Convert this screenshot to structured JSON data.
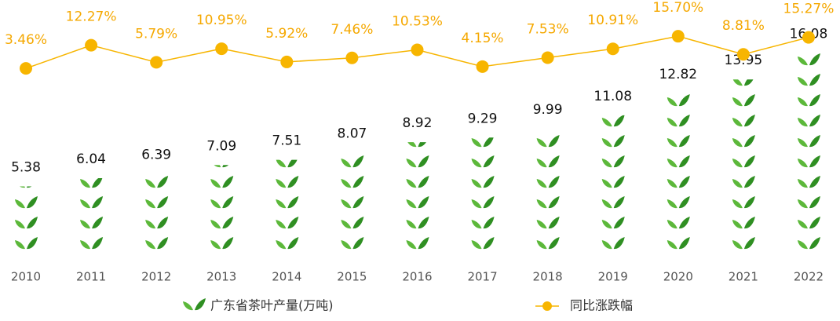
{
  "chart_data": {
    "type": "bar",
    "categories": [
      "2010",
      "2011",
      "2012",
      "2013",
      "2014",
      "2015",
      "2016",
      "2017",
      "2018",
      "2019",
      "2020",
      "2021",
      "2022"
    ],
    "series": [
      {
        "name": "广东省茶叶产量(万吨)",
        "type": "bar",
        "color": "#3c9e2a",
        "values": [
          5.38,
          6.04,
          6.39,
          7.09,
          7.51,
          8.07,
          8.92,
          9.29,
          9.99,
          11.08,
          12.82,
          13.95,
          16.08
        ]
      },
      {
        "name": "同比涨跌幅",
        "type": "line",
        "axis": "y2",
        "color": "#f7b500",
        "values": [
          3.46,
          12.27,
          5.79,
          10.95,
          5.92,
          7.46,
          10.53,
          4.15,
          7.53,
          10.91,
          15.7,
          8.81,
          15.27
        ],
        "value_labels": [
          "3.46%",
          "12.27%",
          "5.79%",
          "10.95%",
          "5.92%",
          "7.46%",
          "10.53%",
          "4.15%",
          "7.53%",
          "10.91%",
          "15.70%",
          "8.81%",
          "15.27%"
        ]
      }
    ],
    "ylim": [
      0,
      20
    ],
    "y2lim": [
      -67,
      28
    ]
  }
}
